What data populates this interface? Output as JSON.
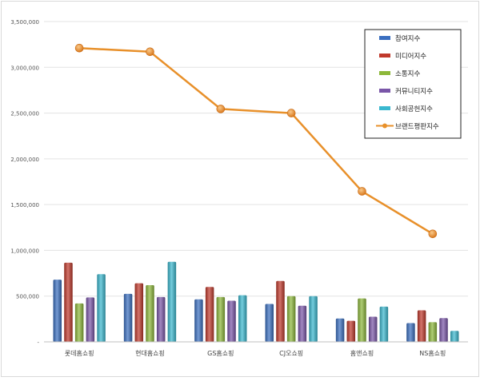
{
  "chart_data": {
    "type": "bar",
    "categories": [
      "롯데홈쇼핑",
      "현대홈쇼핑",
      "GS홈쇼핑",
      "CJ오쇼핑",
      "홈앤쇼핑",
      "NS홈쇼핑"
    ],
    "series": [
      {
        "name": "참여지수",
        "type": "bar",
        "color": "#3a6fc0",
        "values": [
          680000,
          525000,
          465000,
          415000,
          255000,
          205000
        ]
      },
      {
        "name": "미디어지수",
        "type": "bar",
        "color": "#c0392b",
        "values": [
          865000,
          640000,
          600000,
          665000,
          230000,
          345000
        ]
      },
      {
        "name": "소통지수",
        "type": "bar",
        "color": "#8db83a",
        "values": [
          420000,
          620000,
          490000,
          500000,
          475000,
          215000
        ]
      },
      {
        "name": "커뮤니티지수",
        "type": "bar",
        "color": "#7a56a8",
        "values": [
          485000,
          490000,
          450000,
          395000,
          275000,
          260000
        ]
      },
      {
        "name": "사회공헌지수",
        "type": "bar",
        "color": "#3ab8cf",
        "values": [
          740000,
          875000,
          510000,
          500000,
          385000,
          120000
        ]
      },
      {
        "name": "브랜드평판지수",
        "type": "line",
        "color": "#e8902a",
        "values": [
          3210000,
          3170000,
          2545000,
          2500000,
          1645000,
          1180000
        ]
      }
    ],
    "yticks": [
      "3,500,000",
      "3,000,000",
      "2,500,000",
      "2,000,000",
      "1,500,000",
      "1,000,000",
      "500,000",
      "-"
    ],
    "ylim": [
      0,
      3500000
    ],
    "grid": true,
    "legend": "top-right"
  }
}
